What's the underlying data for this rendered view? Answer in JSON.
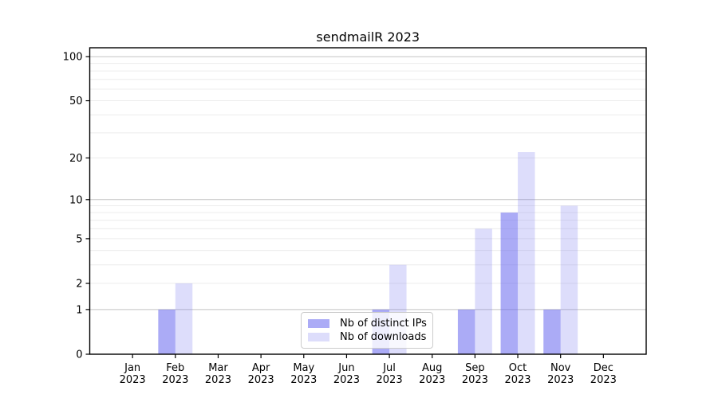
{
  "title": "sendmailR 2023",
  "legend": {
    "items": [
      {
        "label": "Nb of distinct IPs",
        "color": "rgba(102,102,238,0.55)"
      },
      {
        "label": "Nb of downloads",
        "color": "rgba(102,102,238,0.22)"
      }
    ]
  },
  "chart_data": {
    "type": "bar",
    "title": "sendmailR 2023",
    "xlabel": "",
    "ylabel": "",
    "categories": [
      "Jan 2023",
      "Feb 2023",
      "Mar 2023",
      "Apr 2023",
      "May 2023",
      "Jun 2023",
      "Jul 2023",
      "Aug 2023",
      "Sep 2023",
      "Oct 2023",
      "Nov 2023",
      "Dec 2023"
    ],
    "series": [
      {
        "name": "Nb of distinct IPs",
        "color": "rgba(102,102,238,0.55)",
        "values": [
          0,
          1,
          0,
          0,
          0,
          0,
          1,
          0,
          1,
          8,
          1,
          0
        ]
      },
      {
        "name": "Nb of downloads",
        "color": "rgba(102,102,238,0.22)",
        "values": [
          0,
          2,
          0,
          0,
          0,
          0,
          3,
          0,
          6,
          22,
          9,
          0
        ]
      }
    ],
    "yscale": "log1p",
    "ylim": [
      0,
      115
    ],
    "yticks": [
      0,
      1,
      2,
      5,
      10,
      20,
      50,
      100
    ],
    "y_major_gridlines": [
      1,
      10,
      100
    ],
    "y_minor_gridlines": [
      2,
      3,
      4,
      5,
      6,
      7,
      8,
      9,
      20,
      30,
      40,
      50,
      60,
      70,
      80,
      90
    ],
    "grid_major_color": "#c3c3c3",
    "grid_minor_color": "#ececec",
    "axis_color": "#000000",
    "tick_label_color": "#000000",
    "legend_position": "lower center",
    "grid": "on"
  }
}
